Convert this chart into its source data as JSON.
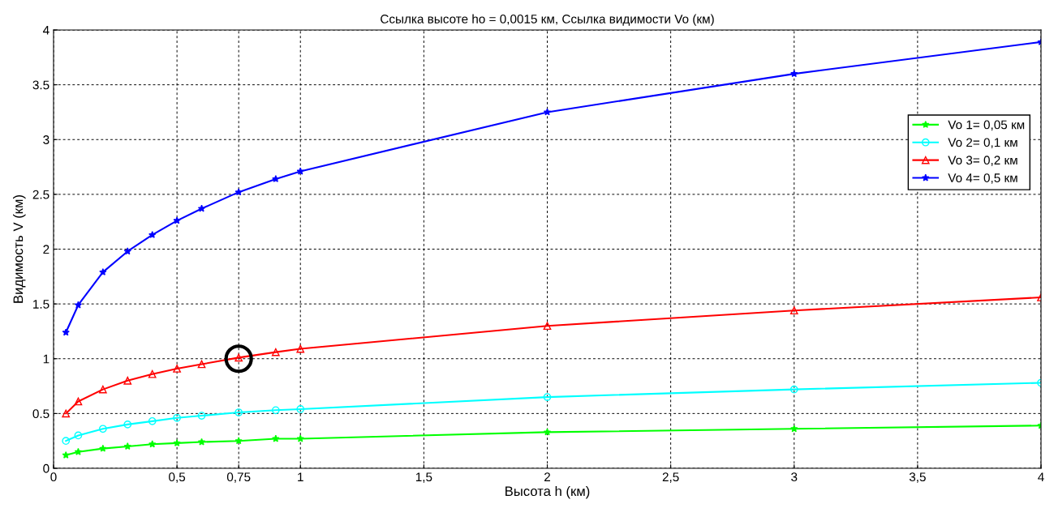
{
  "chart_data": {
    "type": "line",
    "title": "Ссылка высоте ho = 0,0015 км, Ссылка видимости Vo (км)",
    "xlabel": "Высота h (км)",
    "ylabel": "Видимость V (км)",
    "x": [
      0.05,
      0.1,
      0.2,
      0.3,
      0.4,
      0.5,
      0.6,
      0.75,
      0.9,
      1,
      2,
      3,
      4
    ],
    "series": [
      {
        "name": "Vo 1= 0,05 км",
        "color": "#00ff00",
        "marker": "star",
        "values": [
          0.12,
          0.15,
          0.18,
          0.2,
          0.22,
          0.23,
          0.24,
          0.25,
          0.27,
          0.27,
          0.33,
          0.36,
          0.39
        ]
      },
      {
        "name": "Vo 2= 0,1 км",
        "color": "#00ffff",
        "marker": "circle",
        "values": [
          0.25,
          0.3,
          0.36,
          0.4,
          0.43,
          0.46,
          0.48,
          0.51,
          0.53,
          0.54,
          0.65,
          0.72,
          0.78
        ]
      },
      {
        "name": "Vo 3= 0,2 км",
        "color": "#ff0000",
        "marker": "triangle",
        "values": [
          0.5,
          0.61,
          0.72,
          0.8,
          0.86,
          0.91,
          0.95,
          1.01,
          1.06,
          1.09,
          1.3,
          1.44,
          1.56
        ]
      },
      {
        "name": "Vo 4= 0,5 км",
        "color": "#0000ff",
        "marker": "star",
        "values": [
          1.24,
          1.49,
          1.79,
          1.98,
          2.13,
          2.26,
          2.37,
          2.52,
          2.64,
          2.71,
          3.25,
          3.6,
          3.89
        ]
      },
      {
        "type": "scatter",
        "color": "#000000",
        "marker": "circle",
        "x": [
          0.75
        ],
        "values": [
          1.0
        ]
      }
    ],
    "xlim": [
      0,
      4
    ],
    "xticks": [
      0,
      {
        "value": 0.5,
        "label": "0,5"
      },
      {
        "value": 0.75,
        "label": "0,75"
      },
      1,
      {
        "value": 1.5,
        "label": "1,5"
      },
      2,
      {
        "value": 2.5,
        "label": "2,5"
      },
      3,
      {
        "value": 3.5,
        "label": "3,5"
      },
      4
    ],
    "ylim": [
      0,
      4
    ],
    "yticks": [
      0,
      0.5,
      1,
      1.5,
      2,
      2.5,
      3,
      3.5,
      4
    ],
    "grid": true,
    "legend": "top right",
    "line_style": "solid"
  }
}
